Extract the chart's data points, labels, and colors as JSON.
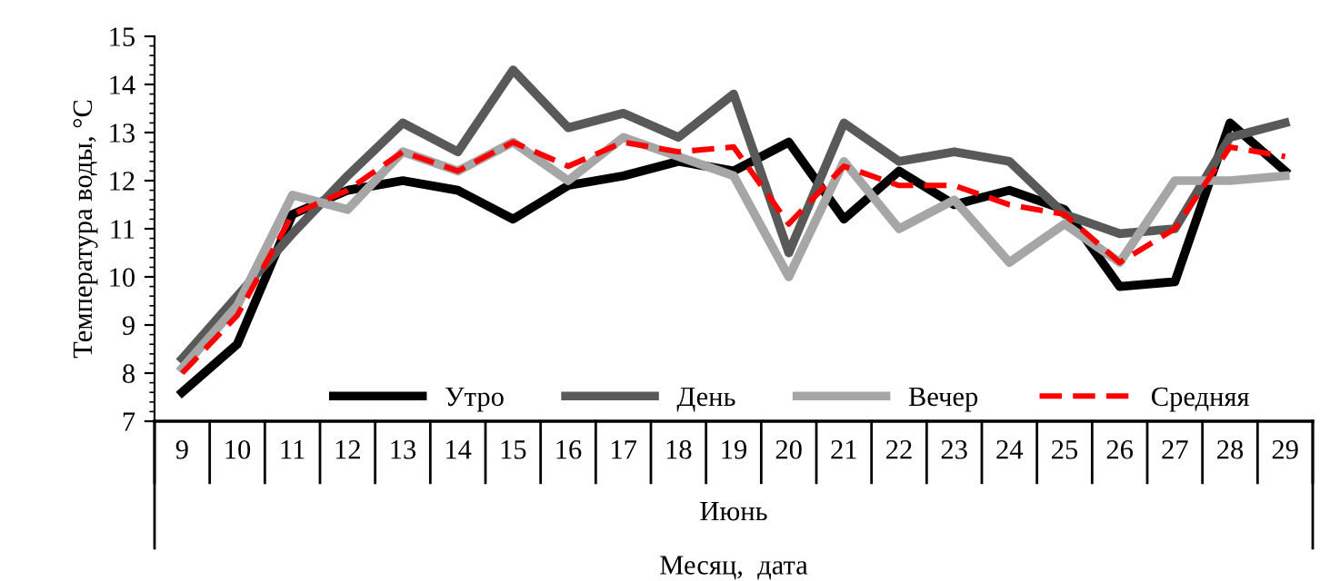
{
  "chart_data": {
    "type": "line",
    "ylabel": "Температура воды, °С",
    "xlabel": "Месяц,  дата",
    "annotations": [
      "Июнь"
    ],
    "categories": [
      "9",
      "10",
      "11",
      "12",
      "13",
      "14",
      "15",
      "16",
      "17",
      "18",
      "19",
      "20",
      "21",
      "22",
      "23",
      "24",
      "25",
      "26",
      "27",
      "28",
      "29"
    ],
    "series": [
      {
        "name": "Утро",
        "color": "#000000",
        "line_style": "solid",
        "values": [
          7.6,
          8.6,
          11.3,
          11.8,
          12.0,
          11.8,
          11.2,
          11.9,
          12.1,
          12.4,
          12.2,
          12.8,
          11.2,
          12.2,
          11.5,
          11.8,
          11.4,
          9.8,
          9.9,
          13.2,
          12.2
        ]
      },
      {
        "name": "День",
        "color": "#595959",
        "line_style": "solid",
        "values": [
          8.3,
          9.6,
          10.9,
          12.1,
          13.2,
          12.6,
          14.3,
          13.1,
          13.4,
          12.9,
          13.8,
          10.5,
          13.2,
          12.4,
          12.6,
          12.4,
          11.3,
          10.9,
          11.0,
          12.9,
          13.2
        ]
      },
      {
        "name": "Вечер",
        "color": "#a6a6a6",
        "line_style": "solid",
        "values": [
          8.1,
          9.4,
          11.7,
          11.4,
          12.6,
          12.2,
          12.8,
          12.0,
          12.9,
          12.5,
          12.1,
          10.0,
          12.4,
          11.0,
          11.6,
          10.3,
          11.1,
          10.3,
          12.0,
          12.0,
          12.1
        ]
      },
      {
        "name": "Средняя",
        "color": "#ff0000",
        "line_style": "dashed",
        "values": [
          8.0,
          9.2,
          11.3,
          11.8,
          12.6,
          12.2,
          12.8,
          12.3,
          12.8,
          12.6,
          12.7,
          11.1,
          12.3,
          11.9,
          11.9,
          11.5,
          11.3,
          10.3,
          11.0,
          12.7,
          12.5
        ]
      }
    ],
    "ylim": [
      7,
      15
    ],
    "yticks": [
      7,
      8,
      9,
      10,
      11,
      12,
      13,
      14,
      15
    ],
    "grid": false,
    "legend": "bottom",
    "marker": "none"
  }
}
